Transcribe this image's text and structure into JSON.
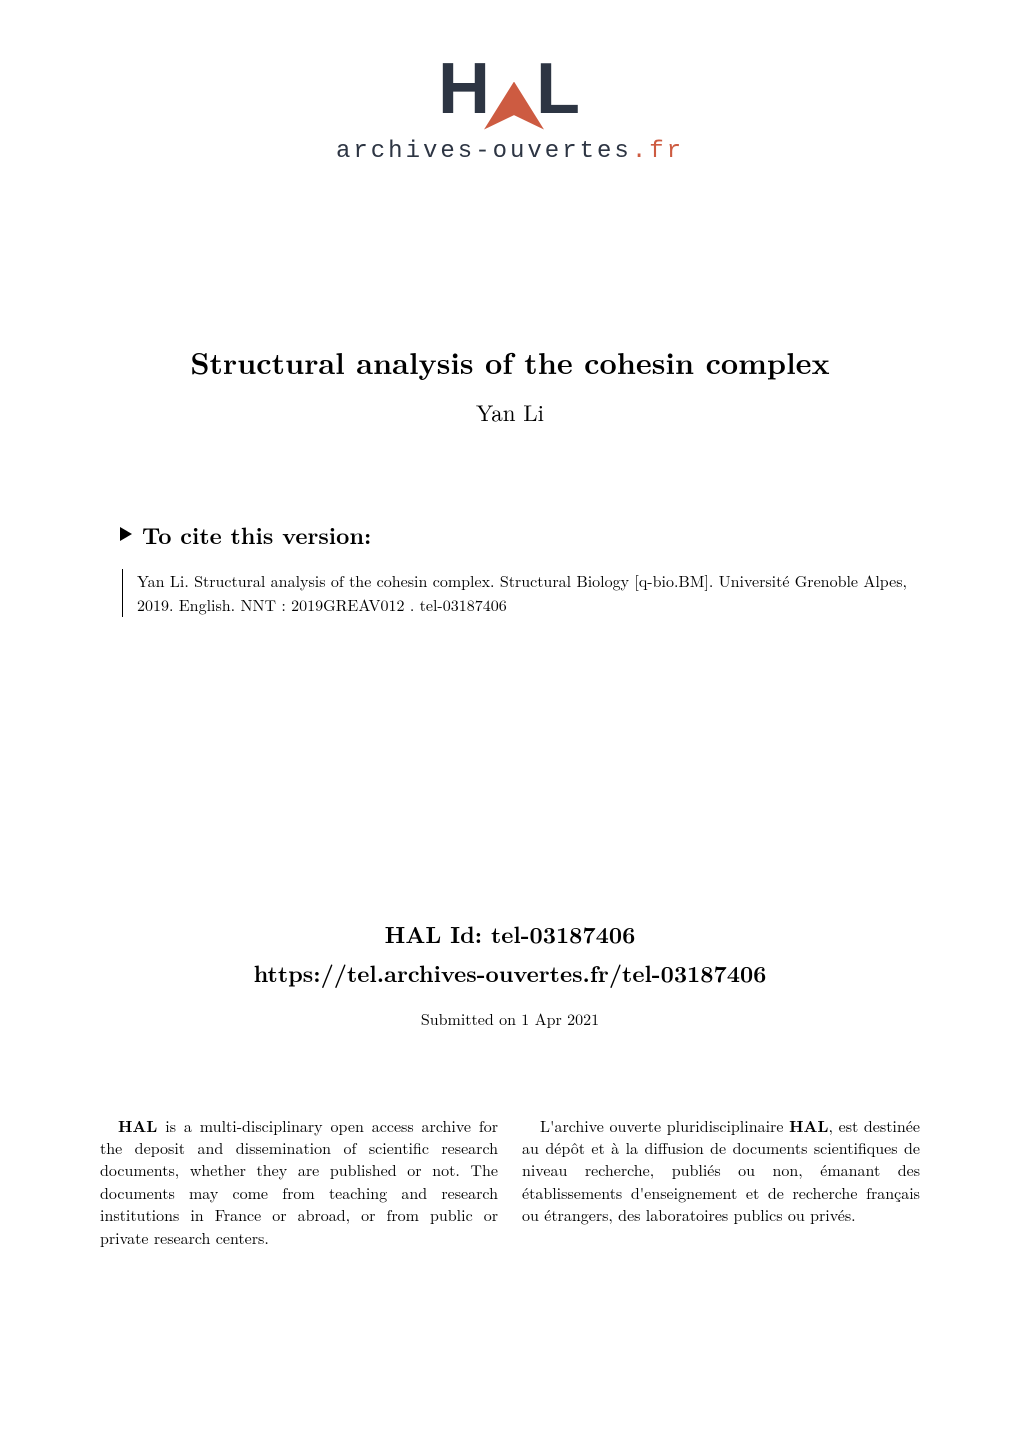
{
  "logo": {
    "text_h": "H",
    "text_l": "L",
    "subtitle_main": "archives-ouvertes",
    "subtitle_accent": ".fr"
  },
  "title": {
    "paper_title": "Structural analysis of the cohesin complex",
    "author": "Yan Li"
  },
  "cite": {
    "header": "To cite this version:",
    "body": "Yan Li. Structural analysis of the cohesin complex. Structural Biology [q-bio.BM]. Université Grenoble Alpes, 2019. English. NNT : 2019GREAV012 . tel-03187406"
  },
  "hal": {
    "id_label": "HAL Id: tel-03187406",
    "url": "https://tel.archives-ouvertes.fr/tel-03187406",
    "submitted": "Submitted on 1 Apr 2021"
  },
  "abstract": {
    "left_bold": "HAL",
    "left_text": " is a multi-disciplinary open access archive for the deposit and dissemination of scientific research documents, whether they are published or not. The documents may come from teaching and research institutions in France or abroad, or from public or private research centers.",
    "right_text_1": "L'archive ouverte pluridisciplinaire ",
    "right_bold": "HAL",
    "right_text_2": ", est destinée au dépôt et à la diffusion de documents scientifiques de niveau recherche, publiés ou non, émanant des établissements d'enseignement et de recherche français ou étrangers, des laboratoires publics ou privés."
  },
  "colors": {
    "background": "#ffffff",
    "text": "#000000",
    "logo_dark": "#2d3543",
    "logo_accent": "#cd5b41"
  },
  "typography": {
    "title_fontsize": 30,
    "author_fontsize": 23,
    "cite_header_fontsize": 23,
    "body_fontsize": 16,
    "hal_fontsize": 23,
    "logo_fontsize": 72,
    "logo_subtitle_fontsize": 24
  }
}
